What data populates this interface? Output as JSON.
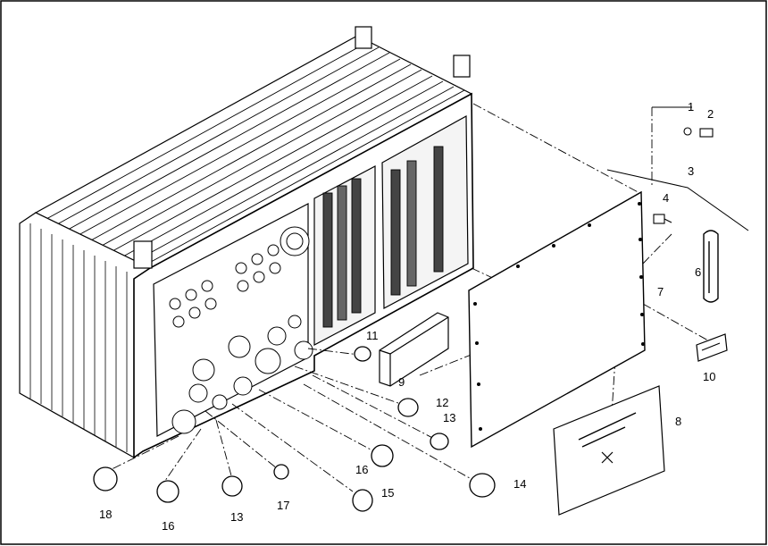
{
  "figure": {
    "callouts": {
      "c1": "1",
      "c2": "2",
      "c3": "3",
      "c4": "4",
      "c6": "6",
      "c7": "7",
      "c8": "8",
      "c9": "9",
      "c10": "10",
      "c11": "11",
      "c12": "12",
      "c13a": "13",
      "c13b": "13",
      "c14": "14",
      "c15": "15",
      "c16a": "16",
      "c16b": "16",
      "c17": "17",
      "c18": "18"
    }
  }
}
